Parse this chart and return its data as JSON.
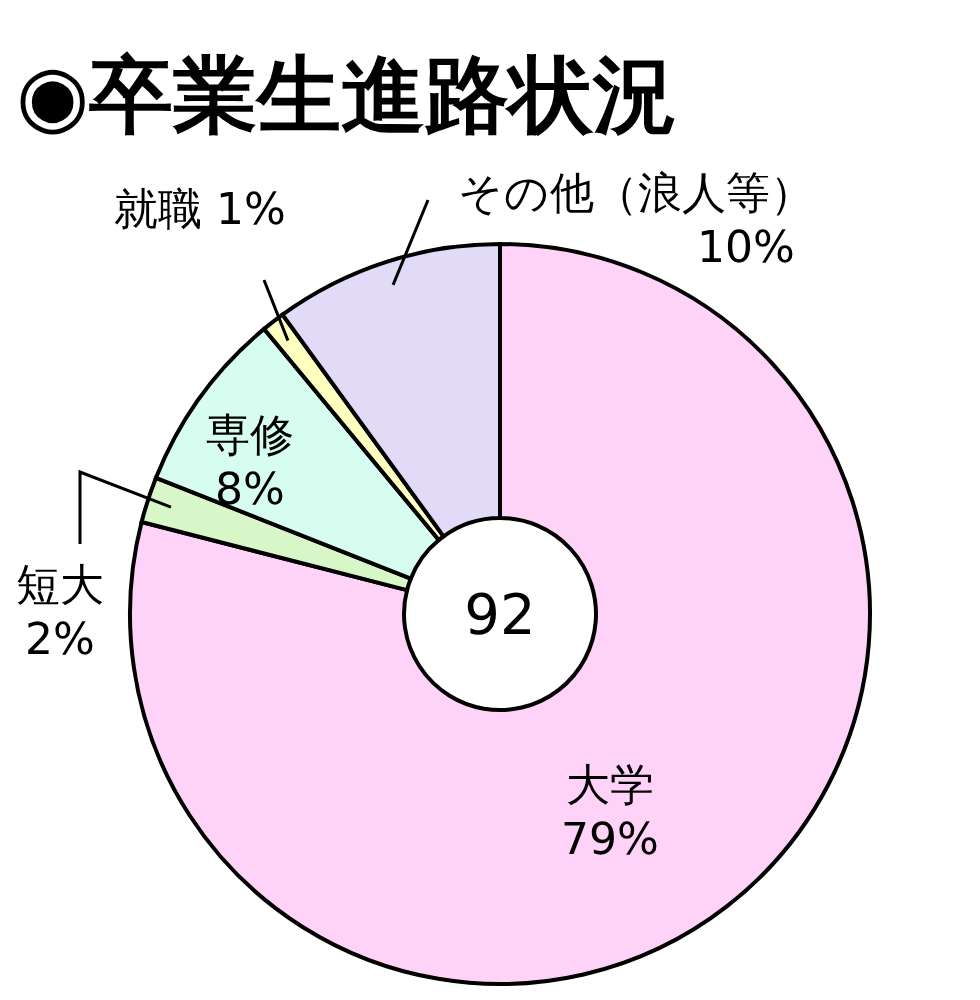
{
  "chart_data": {
    "type": "donut",
    "title": "◉卒業生進路状況",
    "categories": [
      "大学",
      "短大",
      "専修",
      "就職",
      "その他（浪人等）"
    ],
    "values": [
      79,
      2,
      8,
      1,
      10
    ],
    "value_labels": [
      "79%",
      "2%",
      "8%",
      "1%",
      "10%"
    ],
    "colors": [
      "#ffd2f8",
      "#d8f7c8",
      "#d6fdf0",
      "#ffffc0",
      "#e2dbf8"
    ],
    "annotations": [
      "92"
    ]
  }
}
